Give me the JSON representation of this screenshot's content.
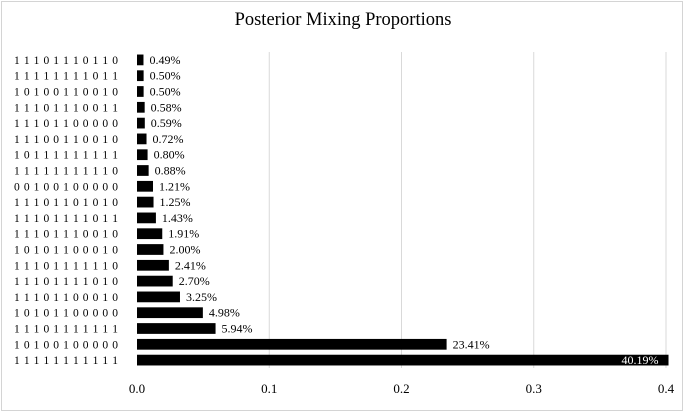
{
  "chart_data": {
    "type": "bar",
    "orientation": "horizontal",
    "title": "Posterior Mixing Proportions",
    "xlabel": "",
    "ylabel": "",
    "xlim": [
      0,
      0.4
    ],
    "x_ticks": [
      0,
      0.1,
      0.2,
      0.3,
      0.4
    ],
    "x_tick_labels": [
      "0.0",
      "0.1",
      "0.2",
      "0.3",
      "0.4"
    ],
    "grid": "vertical major gridlines",
    "legend": "none",
    "bar_color": "#000000",
    "categories": [
      "1 1 1 0 1 1 1 0 1 1 0",
      "1 1 1 1 1 1 1 1 0 1 1",
      "1 0 1 0 0 1 1 0 0 1 0",
      "1 1 1 0 1 1 1 0 0 1 1",
      "1 1 1 0 1 1 0 0 0 0 0",
      "1 1 1 0 0 1 1 0 0 1 0",
      "1 0 1 1 1 1 1 1 1 1 1",
      "1 1 1 1 1 1 1 1 1 1 0",
      "0 0 1 0 0 1 0 0 0 0 0",
      "1 1 1 0 1 1 0 1 0 1 0",
      "1 1 1 0 1 1 1 1 0 1 1",
      "1 1 1 0 1 1 1 0 0 1 0",
      "1 0 1 0 1 1 0 0 0 1 0",
      "1 1 1 0 1 1 1 1 1 1 0",
      "1 1 1 0 1 1 1 1 0 1 0",
      "1 1 1 0 1 1 0 0 0 1 0",
      "1 0 1 0 1 1 0 0 0 0 0",
      "1 1 1 0 1 1 1 1 1 1 1",
      "1 0 1 0 0 1 0 0 0 0 0",
      "1 1 1 1 1 1 1 1 1 1 1"
    ],
    "values": [
      0.0049,
      0.005,
      0.005,
      0.0058,
      0.0059,
      0.0072,
      0.008,
      0.0088,
      0.0121,
      0.0125,
      0.0143,
      0.0191,
      0.02,
      0.0241,
      0.027,
      0.0325,
      0.0498,
      0.0594,
      0.2341,
      0.4019
    ],
    "data_labels": [
      "0.49%",
      "0.50%",
      "0.50%",
      "0.58%",
      "0.59%",
      "0.72%",
      "0.80%",
      "0.88%",
      "1.21%",
      "1.25%",
      "1.43%",
      "1.91%",
      "2.00%",
      "2.41%",
      "2.70%",
      "3.25%",
      "4.98%",
      "5.94%",
      "23.41%",
      "40.19%"
    ]
  }
}
